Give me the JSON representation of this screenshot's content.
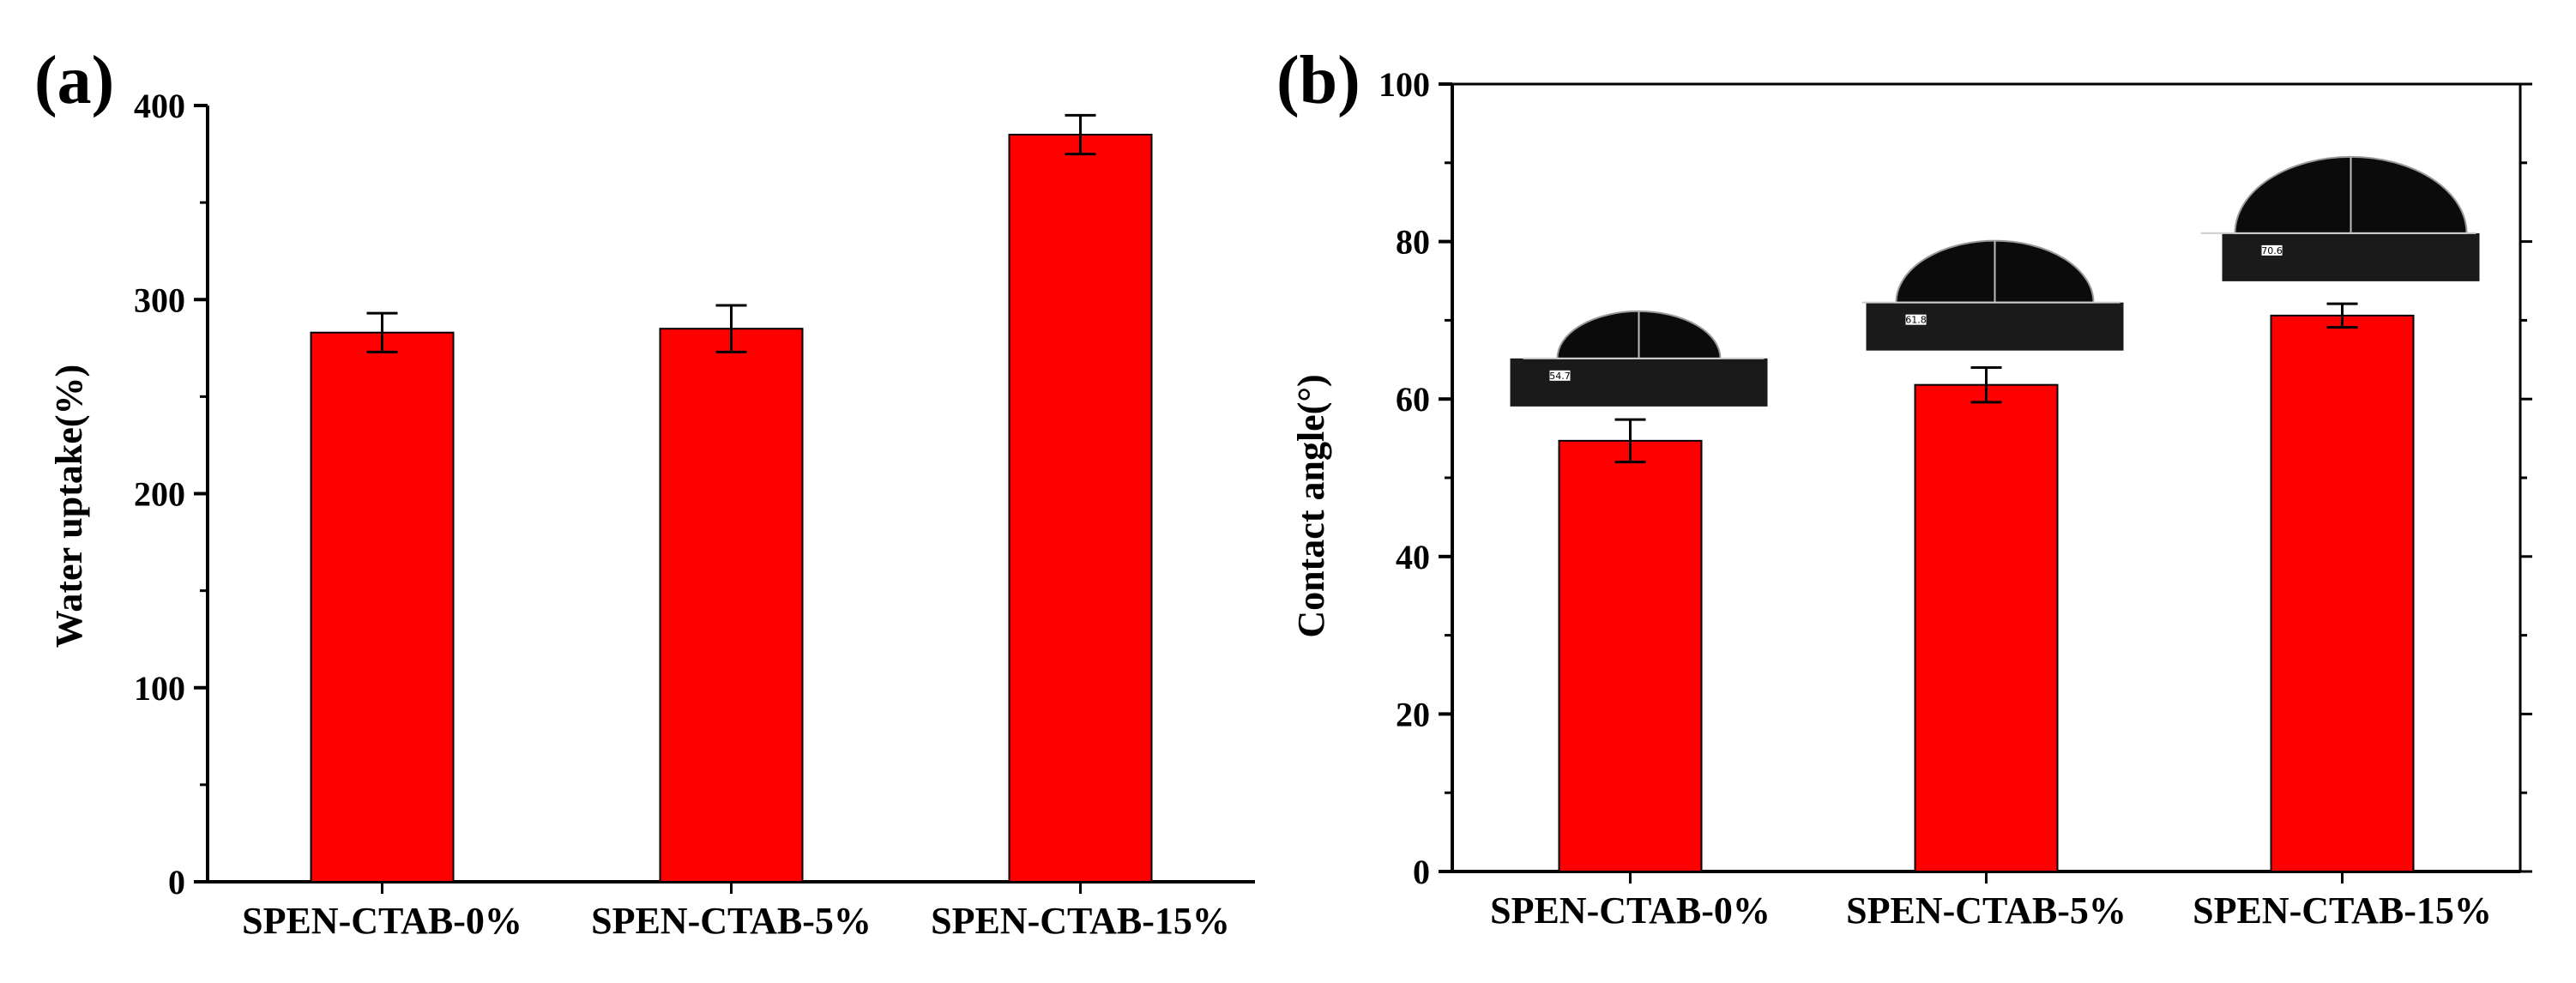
{
  "colors": {
    "bar": "#ff0000",
    "bar_stroke": "#000000",
    "axis": "#000000"
  },
  "chart_data": [
    {
      "panel_label": "(a)",
      "type": "bar",
      "categories": [
        "SPEN-CTAB-0%",
        "SPEN-CTAB-5%",
        "SPEN-CTAB-15%"
      ],
      "values": [
        283,
        285,
        385
      ],
      "errors": [
        10,
        12,
        10
      ],
      "title": "",
      "xlabel": "",
      "ylabel": "Water uptake(%)",
      "ylim": [
        0,
        400
      ],
      "yticks": [
        0,
        100,
        200,
        300,
        400
      ]
    },
    {
      "panel_label": "(b)",
      "type": "bar",
      "categories": [
        "SPEN-CTAB-0%",
        "SPEN-CTAB-5%",
        "SPEN-CTAB-15%"
      ],
      "values": [
        54.7,
        61.8,
        70.6
      ],
      "errors": [
        2.7,
        2.2,
        1.5
      ],
      "title": "",
      "xlabel": "",
      "ylabel": "Contact angle(°)",
      "ylim": [
        0,
        100
      ],
      "yticks": [
        0,
        20,
        40,
        60,
        80,
        100
      ],
      "insets": [
        {
          "name": "contact-angle-photo-0",
          "label": "54.7"
        },
        {
          "name": "contact-angle-photo-5",
          "label": "61.8"
        },
        {
          "name": "contact-angle-photo-15",
          "label": "70.6"
        }
      ]
    }
  ]
}
